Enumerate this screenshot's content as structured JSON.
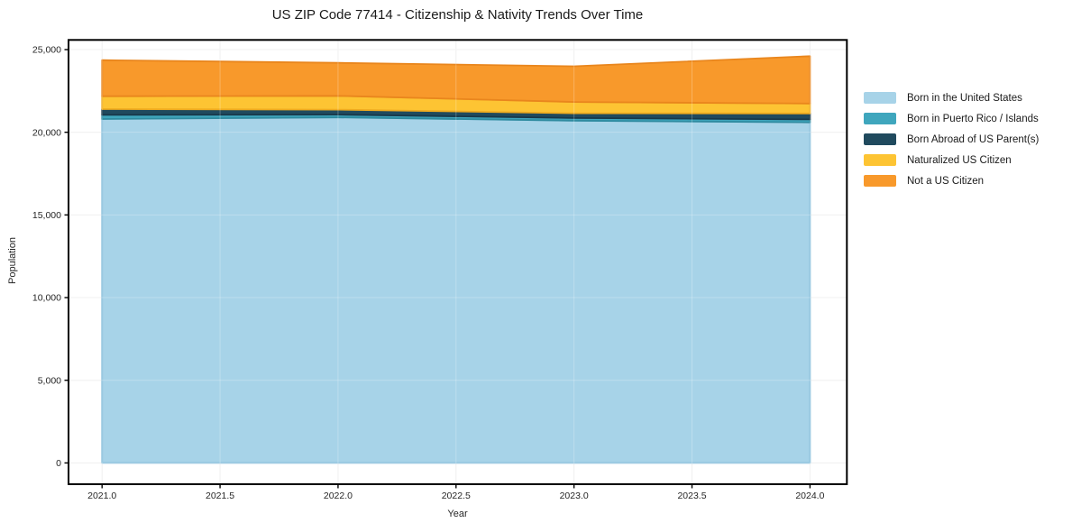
{
  "chart_data": {
    "type": "area",
    "stacked": true,
    "title": "US ZIP Code 77414 - Citizenship & Nativity Trends Over Time",
    "xlabel": "Year",
    "ylabel": "Population",
    "x": [
      2021,
      2022,
      2023,
      2024
    ],
    "series": [
      {
        "name": "Born in the United States",
        "values": [
          20800,
          20900,
          20700,
          20600
        ],
        "color": "#a7d3e8",
        "edge": "#86bedb"
      },
      {
        "name": "Born in Puerto Rico / Islands",
        "values": [
          250,
          170,
          160,
          180
        ],
        "color": "#3fa6bd",
        "edge": "#2f8ba0"
      },
      {
        "name": "Born Abroad of US Parent(s)",
        "values": [
          350,
          300,
          290,
          360
        ],
        "color": "#204a5e",
        "edge": "#18384a"
      },
      {
        "name": "Naturalized US Citizen",
        "values": [
          780,
          830,
          680,
          600
        ],
        "color": "#fdc433",
        "edge": "#efab1f"
      },
      {
        "name": "Not a US Citizen",
        "values": [
          2180,
          2000,
          2160,
          2860
        ],
        "color": "#f8992b",
        "edge": "#e9861d"
      }
    ],
    "xticks": [
      2021.0,
      2021.5,
      2022.0,
      2022.5,
      2023.0,
      2023.5,
      2024.0
    ],
    "xtick_labels": [
      "2021.0",
      "2021.5",
      "2022.0",
      "2022.5",
      "2023.0",
      "2023.5",
      "2024.0"
    ],
    "yticks": [
      0,
      5000,
      10000,
      15000,
      20000,
      25000
    ],
    "ytick_labels": [
      "0",
      "5,000",
      "10,000",
      "15,000",
      "20,000",
      "25,000"
    ],
    "ylim": [
      0,
      25000
    ],
    "grid": true,
    "legend_position": "right",
    "colors": {
      "grid": "#ececec",
      "spine": "#000000",
      "tick_text": "#262626",
      "title_text": "#1a1a1a",
      "background": "#ffffff"
    }
  }
}
